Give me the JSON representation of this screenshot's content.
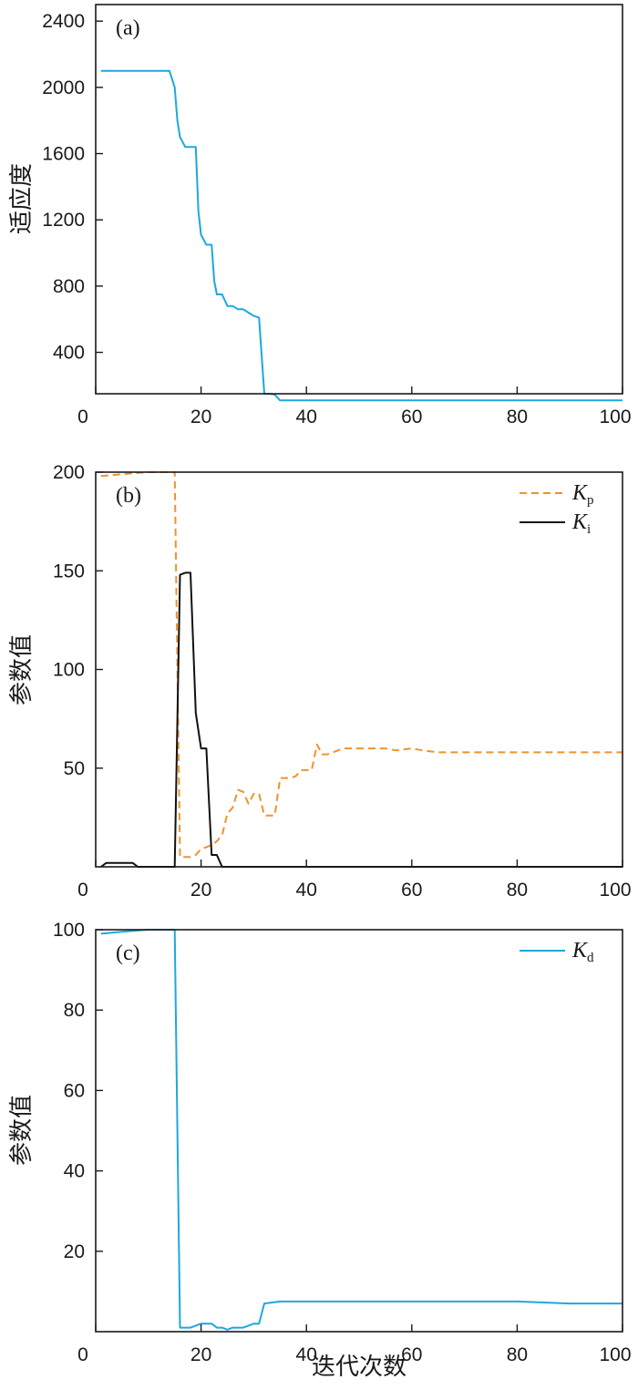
{
  "colors": {
    "cyan": "#1ea7e1",
    "orange": "#f0922b",
    "black": "#111111",
    "axis": "#1a1a1a"
  },
  "chart_data": [
    {
      "type": "line",
      "panel_label": "(a)",
      "ylabel": "适应度",
      "xlabel": "",
      "xlim": [
        0,
        100
      ],
      "ylim": [
        150,
        2500
      ],
      "xticks": [
        "0",
        "20",
        "40",
        "60",
        "80",
        "100"
      ],
      "yticks": [
        "400",
        "800",
        "1200",
        "1600",
        "2000",
        "2400"
      ],
      "legend": [],
      "series": [
        {
          "color": "#1ea7e1",
          "dash": "",
          "x": [
            1,
            10,
            14,
            15,
            15.5,
            16,
            17,
            18,
            19,
            19.5,
            20,
            21,
            22,
            22.5,
            23,
            24,
            25,
            26,
            27,
            28,
            29,
            30,
            31,
            32,
            33,
            34,
            35,
            40,
            50,
            60,
            70,
            80,
            90,
            100
          ],
          "y": [
            2100,
            2100,
            2100,
            2000,
            1800,
            1700,
            1640,
            1640,
            1640,
            1250,
            1110,
            1050,
            1050,
            830,
            750,
            750,
            680,
            680,
            660,
            660,
            640,
            620,
            610,
            150,
            150,
            145,
            110,
            110,
            110,
            110,
            110,
            110,
            110,
            110
          ]
        }
      ]
    },
    {
      "type": "line",
      "panel_label": "(b)",
      "ylabel": "参数值",
      "xlabel": "",
      "xlim": [
        0,
        100
      ],
      "ylim": [
        0,
        200
      ],
      "xticks": [
        "0",
        "20",
        "40",
        "60",
        "80",
        "100"
      ],
      "yticks": [
        "50",
        "100",
        "150",
        "200"
      ],
      "legend": [
        {
          "name": "K",
          "sub": "p",
          "color": "#f0922b",
          "dash": "8 5"
        },
        {
          "name": "K",
          "sub": "i",
          "color": "#111111",
          "dash": ""
        }
      ],
      "series": [
        {
          "name": "Kp",
          "color": "#f0922b",
          "dash": "8 5",
          "x": [
            1,
            5,
            10,
            14,
            15,
            16,
            17,
            18,
            19,
            20,
            21,
            22,
            23,
            24,
            25,
            26,
            27,
            28,
            29,
            30,
            31,
            32,
            33,
            34,
            35,
            36,
            37,
            38,
            39,
            40,
            41,
            42,
            43,
            44,
            45,
            47,
            50,
            55,
            57,
            60,
            62,
            65,
            70,
            80,
            90,
            100
          ],
          "y": [
            198,
            199,
            200,
            200,
            200,
            5,
            5,
            5,
            6,
            9,
            10,
            11,
            13,
            16,
            27,
            30,
            39,
            38,
            32,
            37,
            37,
            26,
            26,
            26,
            45,
            45,
            45,
            46,
            49,
            49,
            49,
            62,
            57,
            57,
            58,
            60,
            60,
            60,
            59,
            60,
            59,
            58,
            58,
            58,
            58,
            58
          ]
        },
        {
          "name": "Ki",
          "color": "#111111",
          "dash": "",
          "x": [
            1,
            2,
            3,
            6,
            7,
            8,
            10,
            15,
            16,
            17,
            18,
            19,
            20,
            21,
            22,
            23,
            24,
            25,
            30,
            40,
            60,
            80,
            100
          ],
          "y": [
            0,
            2,
            2,
            2,
            2,
            0,
            0,
            0,
            148,
            149,
            149,
            78,
            60,
            60,
            6,
            6,
            0,
            0,
            0,
            0,
            0,
            0,
            0
          ]
        }
      ]
    },
    {
      "type": "line",
      "panel_label": "(c)",
      "ylabel": "参数值",
      "xlabel": "迭代次数",
      "xlim": [
        0,
        100
      ],
      "ylim": [
        0,
        100
      ],
      "xticks": [
        "0",
        "20",
        "40",
        "60",
        "80",
        "100"
      ],
      "yticks": [
        "20",
        "40",
        "60",
        "80",
        "100"
      ],
      "legend": [
        {
          "name": "K",
          "sub": "d",
          "color": "#1ea7e1",
          "dash": ""
        }
      ],
      "series": [
        {
          "name": "Kd",
          "color": "#1ea7e1",
          "dash": "",
          "x": [
            1,
            5,
            10,
            15,
            16,
            17,
            18,
            19,
            20,
            21,
            22,
            23,
            24,
            25,
            26,
            27,
            28,
            29,
            30,
            31,
            32,
            35,
            40,
            50,
            60,
            70,
            80,
            90,
            100
          ],
          "y": [
            99,
            99.5,
            100,
            100,
            1,
            1,
            1,
            1.5,
            2,
            2,
            2,
            1,
            1,
            0.5,
            1,
            1,
            1,
            1.5,
            2,
            2,
            7,
            7.5,
            7.5,
            7.5,
            7.5,
            7.5,
            7.5,
            7,
            7
          ]
        }
      ]
    }
  ]
}
